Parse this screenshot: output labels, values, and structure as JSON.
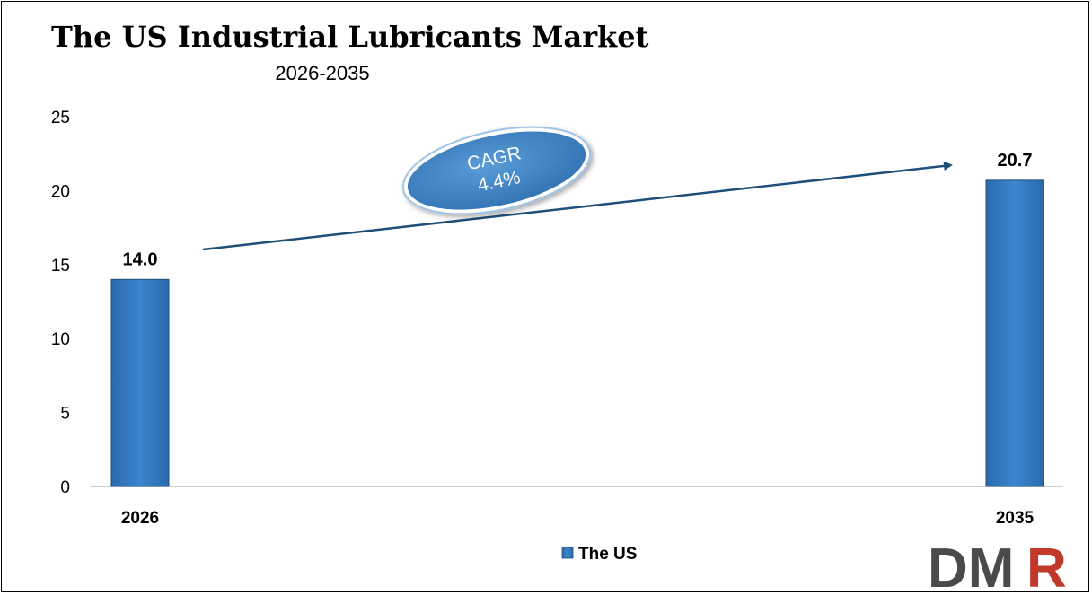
{
  "chart_data": {
    "type": "bar",
    "title": "The US Industrial Lubricants Market",
    "subtitle": "2026-2035",
    "categories": [
      "2026",
      "2035"
    ],
    "series": [
      {
        "name": "The US",
        "values": [
          14.0,
          20.7
        ],
        "labels": [
          "14.0",
          "20.7"
        ]
      }
    ],
    "ylim": [
      0,
      25
    ],
    "yticks": [
      "0",
      "5",
      "10",
      "15",
      "20",
      "25"
    ],
    "grid": false,
    "legend_position": "bottom-center",
    "annotation": {
      "line1": "CAGR",
      "line2": "4.4%"
    }
  },
  "colors": {
    "bar": "#2e75b6",
    "bar_edge": "#1f4e79",
    "arrow": "#1f4e79",
    "ellipse": "#3a80c4",
    "logo_dm": "#4a4a4a",
    "logo_r": "#c0392b"
  },
  "logo": {
    "dm": "DM",
    "r": "R"
  }
}
